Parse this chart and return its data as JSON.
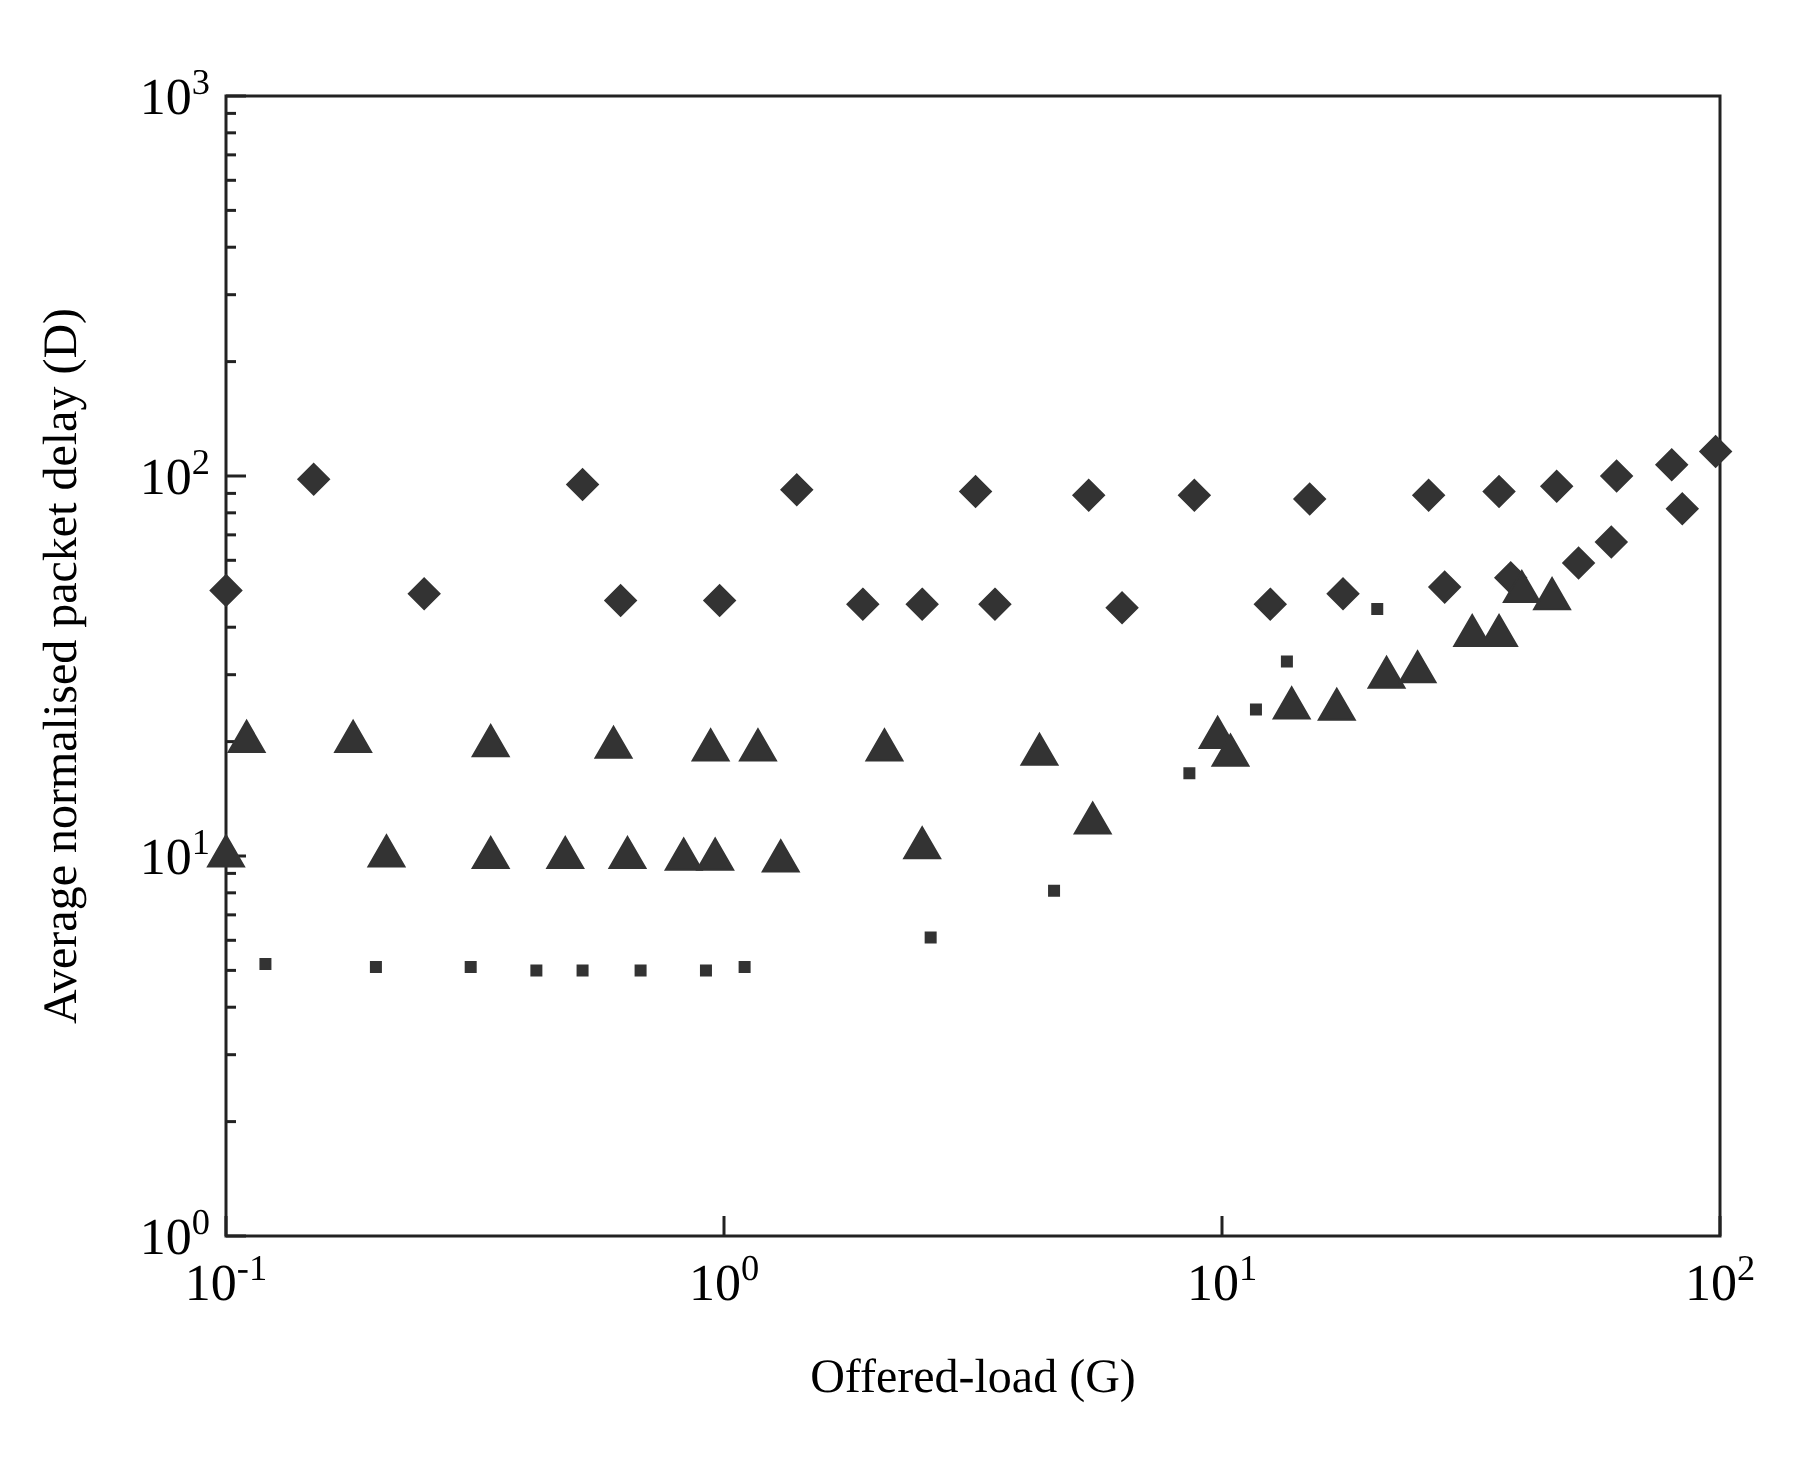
{
  "chart_data": {
    "type": "scatter",
    "xlabel": "Offered-load (G)",
    "ylabel": "Average normalised packet delay (D)",
    "log": "xy",
    "xlim": [
      0.1,
      100
    ],
    "ylim": [
      1,
      1000
    ],
    "xticks": [
      {
        "value": 0.1,
        "label": "10$^{-1}$"
      },
      {
        "value": 1,
        "label": "10$^{0}$"
      },
      {
        "value": 10,
        "label": "10$^{1}$"
      },
      {
        "value": 100,
        "label": "10$^{2}$"
      }
    ],
    "yticks": [
      {
        "value": 1,
        "label": "10$^{0}$"
      },
      {
        "value": 2,
        "label": null
      },
      {
        "value": 3,
        "label": null
      },
      {
        "value": 4,
        "label": null
      },
      {
        "value": 5,
        "label": null
      },
      {
        "value": 6,
        "label": null
      },
      {
        "value": 7,
        "label": null
      },
      {
        "value": 8,
        "label": null
      },
      {
        "value": 9,
        "label": null
      },
      {
        "value": 10,
        "label": "10$^{1}$"
      },
      {
        "value": 20,
        "label": null
      },
      {
        "value": 30,
        "label": null
      },
      {
        "value": 40,
        "label": null
      },
      {
        "value": 50,
        "label": null
      },
      {
        "value": 60,
        "label": null
      },
      {
        "value": 70,
        "label": null
      },
      {
        "value": 80,
        "label": null
      },
      {
        "value": 90,
        "label": null
      },
      {
        "value": 100,
        "label": "10$^{2}$"
      },
      {
        "value": 200,
        "label": null
      },
      {
        "value": 300,
        "label": null
      },
      {
        "value": 400,
        "label": null
      },
      {
        "value": 500,
        "label": null
      },
      {
        "value": 600,
        "label": null
      },
      {
        "value": 700,
        "label": null
      },
      {
        "value": 800,
        "label": null
      },
      {
        "value": 900,
        "label": null
      },
      {
        "value": 1000,
        "label": "10$^{3}$"
      }
    ],
    "series": [
      {
        "color": "#333333",
        "marker": "diamond",
        "x": [
          0.15,
          0.52,
          1.4,
          3.2,
          5.4,
          8.8,
          15,
          26,
          36,
          47,
          62,
          80,
          98
        ],
        "values": [
          98,
          95,
          92,
          91,
          89,
          89,
          87,
          89,
          91,
          94,
          100,
          107,
          116
        ]
      },
      {
        "color": "#333333",
        "marker": "diamond",
        "x": [
          0.1,
          0.25,
          0.62,
          0.98,
          1.9,
          2.5,
          3.5,
          6.3,
          12.5,
          17.5,
          28,
          38,
          52,
          60.5,
          84
        ],
        "values": [
          50,
          49,
          47,
          47,
          46,
          46,
          46,
          45,
          46,
          49,
          51,
          54,
          59,
          67,
          82
        ]
      },
      {
        "color": "#333333",
        "marker": "triangle",
        "x": [
          0.11,
          0.18,
          0.34,
          0.6,
          0.94,
          1.17,
          2.1,
          4.3,
          9.8,
          13.8,
          21.4,
          24.7,
          36,
          46
        ],
        "values": [
          20,
          20,
          19.5,
          19.3,
          19,
          19,
          19,
          18.5,
          20.5,
          24.5,
          29.5,
          30.5,
          38,
          47.5
        ]
      },
      {
        "color": "#333333",
        "marker": "triangle",
        "x": [
          0.1,
          0.21,
          0.34,
          0.48,
          0.64,
          0.83,
          0.96,
          1.3,
          2.5,
          5.5,
          10.4,
          17,
          31.8,
          40
        ],
        "values": [
          10,
          10,
          9.9,
          9.9,
          9.9,
          9.8,
          9.8,
          9.7,
          10.5,
          12.2,
          18.4,
          24.3,
          38,
          49.6
        ]
      },
      {
        "color": "#333333",
        "marker": "square",
        "x": [
          0.12,
          0.2,
          0.31,
          0.42,
          0.52,
          0.68,
          0.92,
          1.1,
          2.6,
          4.6,
          8.6,
          11.7,
          13.5,
          20.5
        ],
        "values": [
          5.2,
          5.1,
          5.1,
          5,
          5,
          5,
          5,
          5.1,
          6.1,
          8.1,
          16.5,
          24.3,
          32.5,
          44.7
        ]
      }
    ]
  }
}
